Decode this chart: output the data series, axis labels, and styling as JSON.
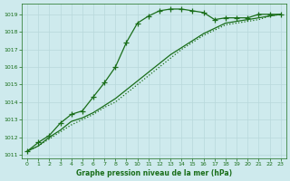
{
  "title": "Graphe pression niveau de la mer (hPa)",
  "background_color": "#ceeaed",
  "grid_color": "#b8d8db",
  "line_color": "#1a6e1a",
  "xlim": [
    -0.5,
    23.5
  ],
  "ylim": [
    1010.8,
    1019.6
  ],
  "yticks": [
    1011,
    1012,
    1013,
    1014,
    1015,
    1016,
    1017,
    1018,
    1019
  ],
  "xticks": [
    0,
    1,
    2,
    3,
    4,
    5,
    6,
    7,
    8,
    9,
    10,
    11,
    12,
    13,
    14,
    15,
    16,
    17,
    18,
    19,
    20,
    21,
    22,
    23
  ],
  "series_curved_x": [
    0,
    1,
    2,
    3,
    4,
    5,
    6,
    7,
    8,
    9,
    10,
    11,
    12,
    13,
    14,
    15,
    16,
    17,
    18,
    19,
    20,
    21,
    22,
    23
  ],
  "series_curved_y": [
    1011.2,
    1011.7,
    1012.1,
    1012.8,
    1013.3,
    1013.5,
    1014.3,
    1015.1,
    1016.0,
    1017.4,
    1018.5,
    1018.9,
    1019.2,
    1019.3,
    1019.3,
    1019.2,
    1019.1,
    1018.7,
    1018.8,
    1018.8,
    1018.8,
    1019.0,
    1019.0,
    1019.0
  ],
  "series_line1_x": [
    0,
    1,
    2,
    3,
    4,
    5,
    6,
    7,
    8,
    9,
    10,
    11,
    12,
    13,
    14,
    15,
    16,
    17,
    18,
    19,
    20,
    21,
    22,
    23
  ],
  "series_line1_y": [
    1011.2,
    1011.5,
    1012.0,
    1012.4,
    1012.9,
    1013.1,
    1013.4,
    1013.8,
    1014.2,
    1014.7,
    1015.2,
    1015.7,
    1016.2,
    1016.7,
    1017.1,
    1017.5,
    1017.9,
    1018.2,
    1018.5,
    1018.6,
    1018.7,
    1018.8,
    1018.9,
    1019.0
  ],
  "series_line2_x": [
    0,
    1,
    2,
    3,
    4,
    5,
    6,
    7,
    8,
    9,
    10,
    11,
    12,
    13,
    14,
    15,
    16,
    17,
    18,
    19,
    20,
    21,
    22,
    23
  ],
  "series_line2_y": [
    1011.2,
    1011.5,
    1011.9,
    1012.3,
    1012.7,
    1013.0,
    1013.3,
    1013.7,
    1014.0,
    1014.5,
    1015.0,
    1015.5,
    1016.0,
    1016.5,
    1017.0,
    1017.4,
    1017.8,
    1018.1,
    1018.4,
    1018.5,
    1018.6,
    1018.7,
    1018.9,
    1019.0
  ]
}
